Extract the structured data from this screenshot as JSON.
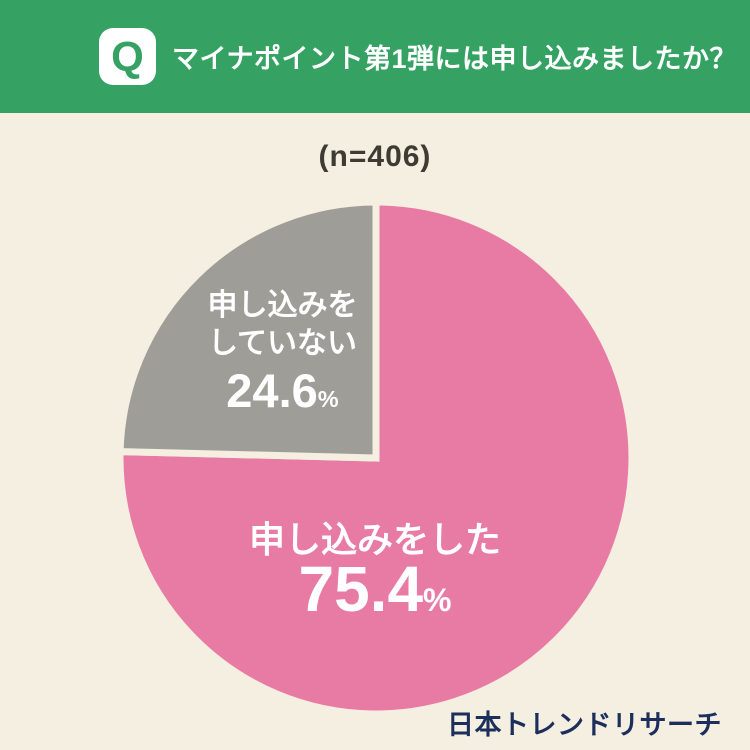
{
  "colors": {
    "header_bg": "#35a263",
    "bg": "#f5efe2",
    "pink": "#e87ba4",
    "gray": "#9e9d97",
    "navy": "#1c2f5c",
    "sample_text": "#3e3b33",
    "white": "#ffffff"
  },
  "header": {
    "q_badge": "Q",
    "question": "マイナポイント第1弾には申し込みましたか？"
  },
  "sample_size": "(n=406)",
  "chart_data": {
    "type": "pie",
    "title": "マイナポイント第1弾には申し込みましたか？",
    "sample_label": "(n=406)",
    "n": 406,
    "start_angle_deg": 0,
    "direction": "clockwise",
    "legend": "none",
    "slices": [
      {
        "label": "申し込みをした",
        "value": 75.4,
        "color": "#e87ba4"
      },
      {
        "label": "申し込みをしていない",
        "value": 24.6,
        "color": "#9e9d97"
      }
    ]
  },
  "pie_labels": {
    "no_line1": "申し込みを",
    "no_line2": "していない",
    "no_value": "24.6",
    "yes_label": "申し込みをした",
    "yes_value": "75.4",
    "percent_sign": "%"
  },
  "footer": {
    "brand": "日本トレンドリサーチ"
  }
}
